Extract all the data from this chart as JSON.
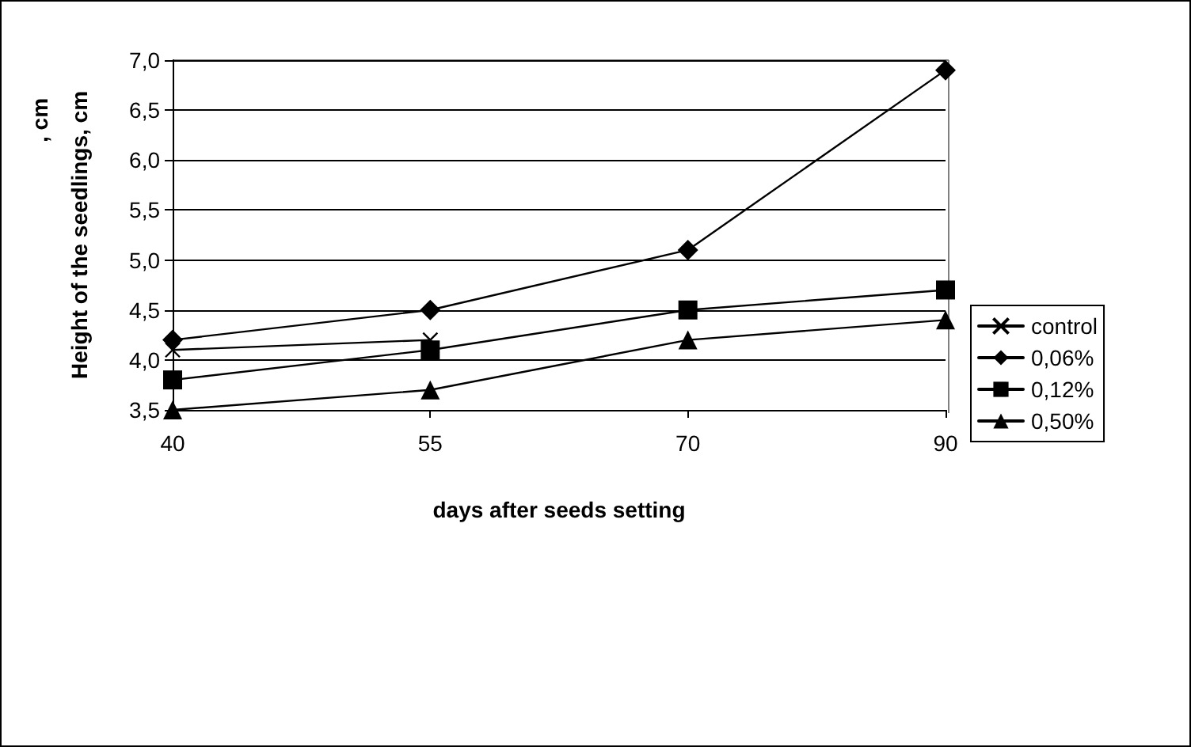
{
  "chart_data": {
    "type": "line",
    "xlabel": "days after seeds setting",
    "ylabel": "Height of the seedlings, cm",
    "annotations": [
      ", cm"
    ],
    "categories": [
      "40",
      "55",
      "70",
      "90"
    ],
    "series": [
      {
        "name": "control",
        "color": "#000000",
        "marker": "cross",
        "values": [
          4.1,
          4.2,
          null,
          null
        ]
      },
      {
        "name": "0,06%",
        "color": "#000000",
        "marker": "diamond",
        "values": [
          4.2,
          4.5,
          5.1,
          6.9
        ]
      },
      {
        "name": "0,12%",
        "color": "#000000",
        "marker": "square",
        "values": [
          3.8,
          4.1,
          4.5,
          4.7
        ]
      },
      {
        "name": "0,50%",
        "color": "#000000",
        "marker": "triangle",
        "values": [
          3.5,
          3.7,
          4.2,
          4.4
        ]
      }
    ],
    "ylim": [
      3.5,
      7.0
    ],
    "yticks": [
      {
        "value": 3.5,
        "label": "3,5"
      },
      {
        "value": 4.0,
        "label": "4,0"
      },
      {
        "value": 4.5,
        "label": "4,5"
      },
      {
        "value": 5.0,
        "label": "5,0"
      },
      {
        "value": 5.5,
        "label": "5,5"
      },
      {
        "value": 6.0,
        "label": "6,0"
      },
      {
        "value": 6.5,
        "label": "6,5"
      },
      {
        "value": 7.0,
        "label": "7,0"
      }
    ],
    "grid": "y",
    "legend": "right",
    "line_style": "solid"
  }
}
